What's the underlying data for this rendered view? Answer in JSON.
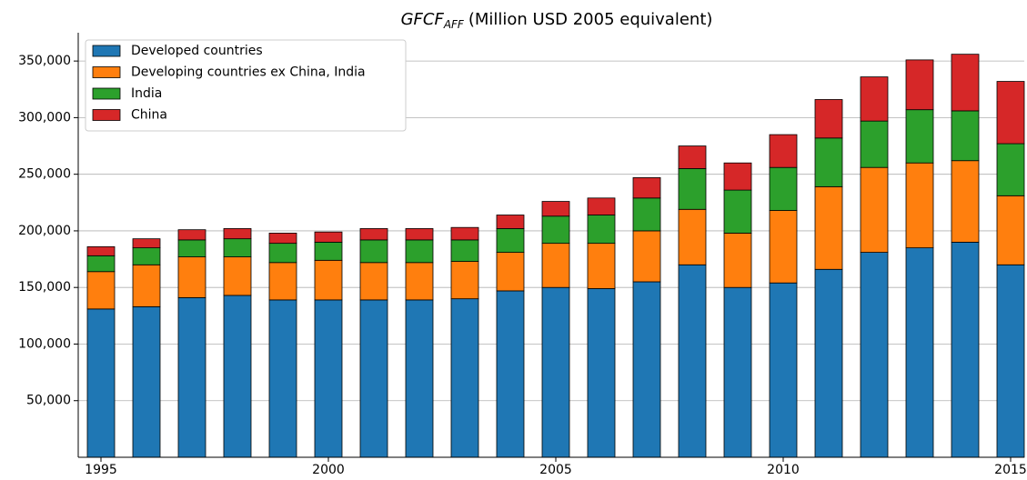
{
  "chart_data": {
    "type": "stacked_bar",
    "title": {
      "main": "GFCF",
      "subscript": "AFF",
      "rest": "(Million USD 2005 equivalent)"
    },
    "x": [
      1995,
      1996,
      1997,
      1998,
      1999,
      2000,
      2001,
      2002,
      2003,
      2004,
      2005,
      2006,
      2007,
      2008,
      2009,
      2010,
      2011,
      2012,
      2013,
      2014,
      2015
    ],
    "series": [
      {
        "name": "Developed countries",
        "color": "#1f77b4",
        "values": [
          131000,
          133000,
          141000,
          143000,
          139000,
          139000,
          139000,
          139000,
          140000,
          147000,
          150000,
          149000,
          155000,
          170000,
          150000,
          154000,
          166000,
          181000,
          185000,
          190000,
          170000
        ]
      },
      {
        "name": "Developing countries ex China, India",
        "color": "#ff7f0e",
        "values": [
          33000,
          37000,
          36000,
          34000,
          33000,
          35000,
          33000,
          33000,
          33000,
          34000,
          39000,
          40000,
          45000,
          49000,
          48000,
          64000,
          73000,
          75000,
          75000,
          72000,
          61000
        ]
      },
      {
        "name": "India",
        "color": "#2ca02c",
        "values": [
          14000,
          15000,
          15000,
          16000,
          17000,
          16000,
          20000,
          20000,
          19000,
          21000,
          24000,
          25000,
          29000,
          36000,
          38000,
          38000,
          43000,
          41000,
          47000,
          44000,
          46000
        ]
      },
      {
        "name": "China",
        "color": "#d62728",
        "values": [
          8000,
          8000,
          9000,
          9000,
          9000,
          9000,
          10000,
          10000,
          11000,
          12000,
          13000,
          15000,
          18000,
          20000,
          24000,
          29000,
          34000,
          39000,
          44000,
          50000,
          55000
        ]
      }
    ],
    "xlim": [
      1994.5,
      2015.3
    ],
    "xticks": [
      1995,
      2000,
      2005,
      2010,
      2015
    ],
    "ylim": [
      0,
      375000
    ],
    "yticks": [
      {
        "value": 50000,
        "label": "50,000"
      },
      {
        "value": 100000,
        "label": "100,000"
      },
      {
        "value": 150000,
        "label": "150,000"
      },
      {
        "value": 200000,
        "label": "200,000"
      },
      {
        "value": 250000,
        "label": "250,000"
      },
      {
        "value": 300000,
        "label": "300,000"
      },
      {
        "value": 350000,
        "label": "350,000"
      }
    ],
    "grid": true,
    "legend": "upper left"
  }
}
